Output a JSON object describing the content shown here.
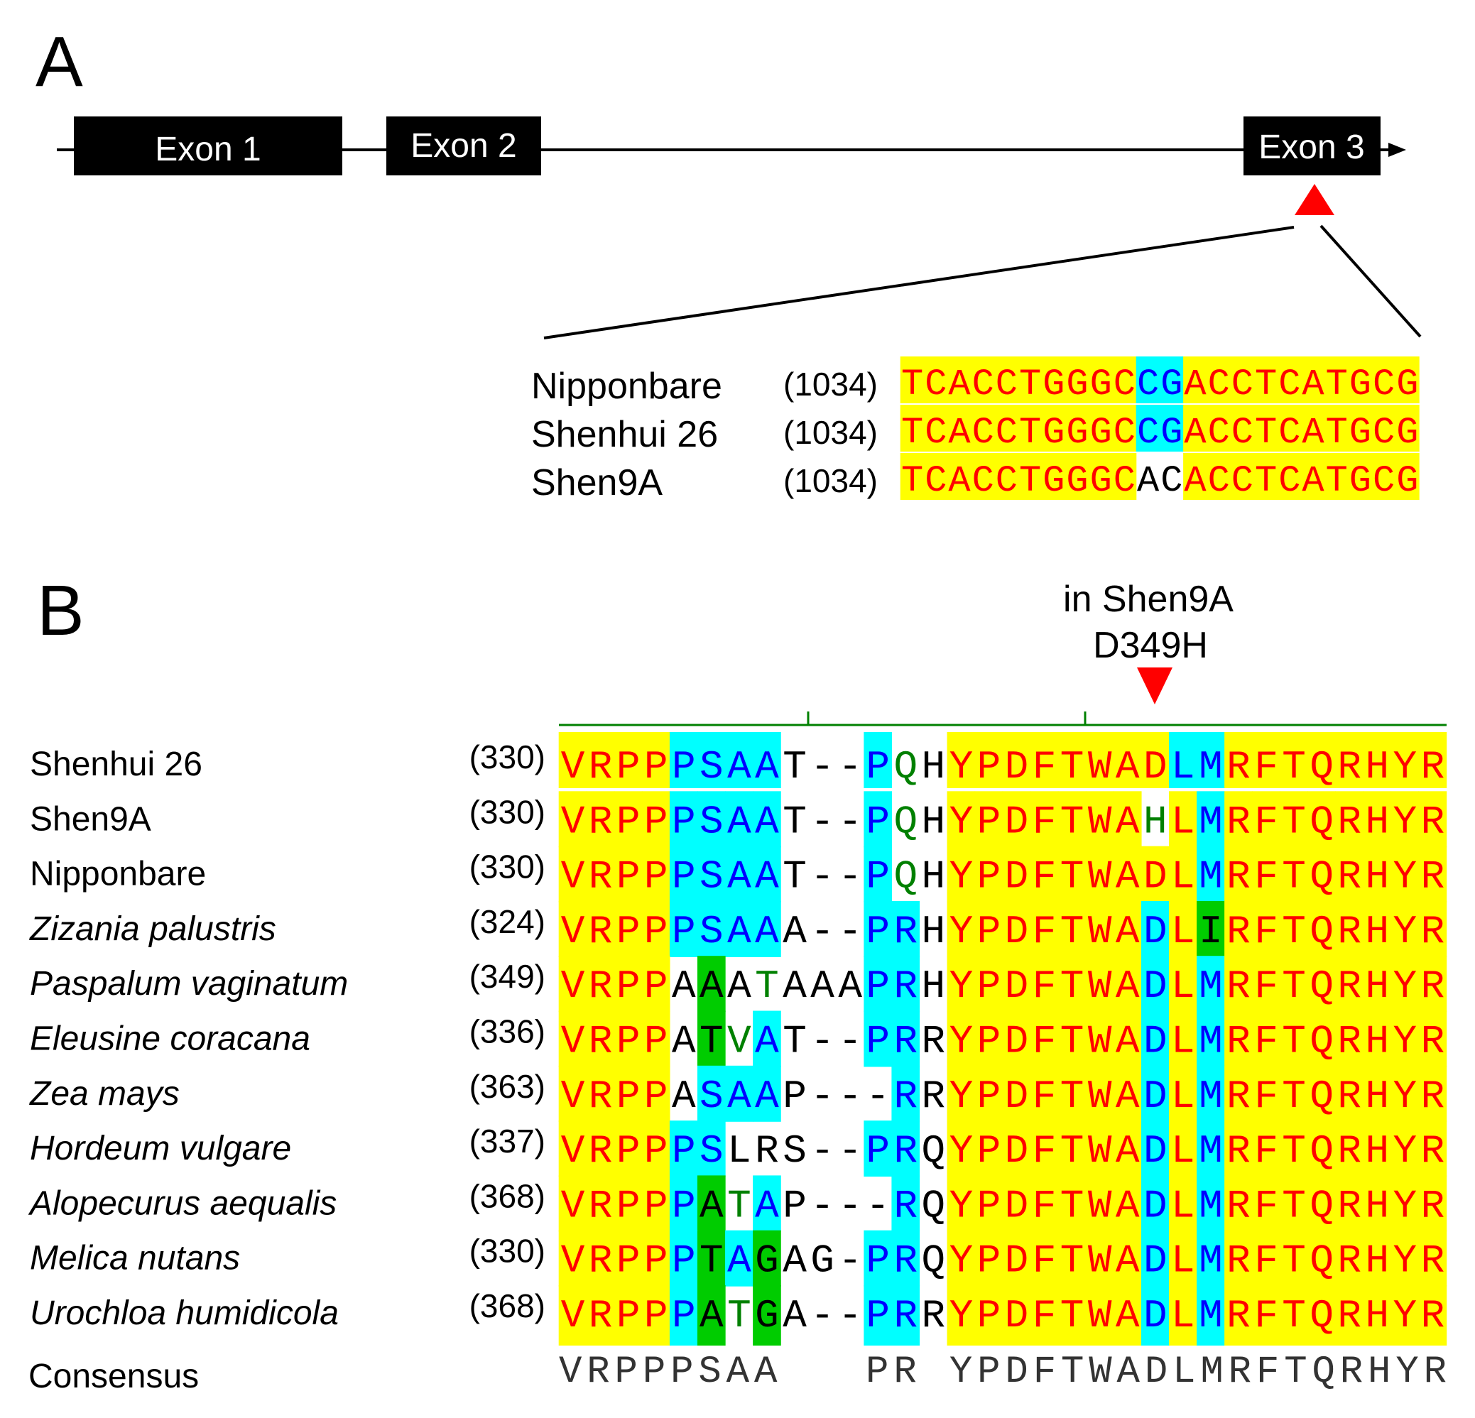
{
  "panel_a": {
    "label": "A",
    "exons": [
      "Exon 1",
      "Exon 2",
      "Exon 3"
    ],
    "sequences": [
      {
        "name": "Nipponbare",
        "pos": "(1034)",
        "seq": "TCACCTGGGCCGACCTCATGCG",
        "colors": "yyyyyyyyyyccyyyyyyyyyy"
      },
      {
        "name": "Shenhui 26",
        "pos": "(1034)",
        "seq": "TCACCTGGGCCGACCTCATGCG",
        "colors": "yyyyyyyyyyccyyyyyyyyyy"
      },
      {
        "name": "Shen9A",
        "pos": "(1034)",
        "seq": "TCACCTGGGCACACCTCATGCG",
        "colors": "yyyyyyyyyywwyyyyyyyyyy"
      }
    ]
  },
  "panel_b": {
    "label": "B",
    "annotation_line1": "in Shen9A",
    "annotation_line2": "D349H",
    "rows": [
      {
        "name": "Shenhui 26",
        "italic": false,
        "pos": "(330)",
        "seq": "VRPPPSAAT--PQHYPDFTWADLMRFTQRHYR",
        "colors": "yyyyccccwwwctwyyyyyyyyccyyyyyyyy"
      },
      {
        "name": "Shen9A",
        "italic": false,
        "pos": "(330)",
        "seq": "VRPPPSAAT--PQHYPDFTWAHLMRFTQRHYR",
        "colors": "yyyyccccwwwctwyyyyyyytycyyyyyyyy"
      },
      {
        "name": "Nipponbare",
        "italic": false,
        "pos": "(330)",
        "seq": "VRPPPSAAT--PQHYPDFTWADLMRFTQRHYR",
        "colors": "yyyyccccwwwctwyyyyyyyyycyyyyyyyy"
      },
      {
        "name": "Zizania palustris",
        "italic": true,
        "pos": "(324)",
        "seq": "VRPPPSAAA--PRHYPDFTWADLIRFTQRHYR",
        "colors": "yyyyccccwwwccwyyyyyyycygyyyyyyyy"
      },
      {
        "name": "Paspalum vaginatum",
        "italic": true,
        "pos": "(349)",
        "seq": "VRPPAAATAAAPRHYPDFTWADLMRFTQRHYR",
        "colors": "yyyywgwtwwwccwyyyyyyycycyyyyyyyy"
      },
      {
        "name": "Eleusine coracana",
        "italic": true,
        "pos": "(336)",
        "seq": "VRPPATVAT--PRRYPDFTWADLMRFTQRHYR",
        "colors": "yyyywgtcwwwccwyyyyyyycycyyyyyyyy"
      },
      {
        "name": "Zea mays",
        "italic": true,
        "pos": "(363)",
        "seq": "VRPPASAAP---RRYPDFTWADLMRFTQRHYR",
        "colors": "yyyywcccwwwwcwyyyyyyycycyyyyyyyy"
      },
      {
        "name": "Hordeum vulgare",
        "italic": true,
        "pos": "(337)",
        "seq": "VRPPPSLRS--PRQYPDFTWADLMRFTQRHYR",
        "colors": "yyyyccwwwwwccwyyyyyyycycyyyyyyyy"
      },
      {
        "name": "Alopecurus aequalis",
        "italic": true,
        "pos": "(368)",
        "seq": "VRPPPATAP---RQYPDFTWADLMRFTQRHYR",
        "colors": "yyyycgtcwwwwcwyyyyyyycycyyyyyyyy"
      },
      {
        "name": "Melica nutans",
        "italic": true,
        "pos": "(330)",
        "seq": "VRPPPTAGAG-PRQYPDFTWADLMRFTQRHYR",
        "colors": "yyyycgcgwwwccwyyyyyyycycyyyyyyyy"
      },
      {
        "name": "Urochloa humidicola",
        "italic": true,
        "pos": "(368)",
        "seq": "VRPPPATGA--PRRYPDFTWADLMRFTQRHYR",
        "colors": "yyyycgtgwwwccwyyyyyyycycyyyyyyyy"
      }
    ],
    "consensus_label": "Consensus",
    "consensus_seq": "VRPPPSAA   PR YPDFTWADLMRFTQRHYR"
  },
  "colors": {
    "identical_bg": "#ffff00",
    "identical_fg": "#ff0000",
    "conserved_bg": "#00ffff",
    "conserved_fg": "#0000ff",
    "similar_bg": "#00cc00",
    "similar_fg": "#000000",
    "weak_fg": "#008000",
    "plain_fg": "#000000",
    "marker": "#ff0000",
    "ruler": "#008000"
  }
}
